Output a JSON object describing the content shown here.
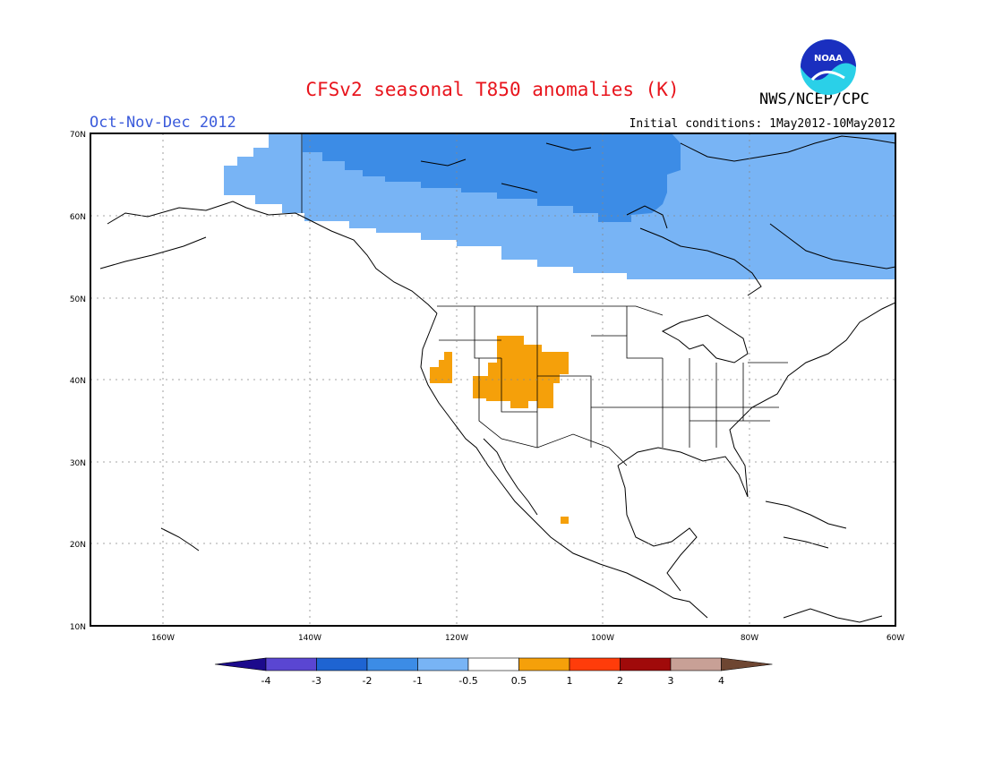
{
  "title": "CFSv2 seasonal T850 anomalies (K)",
  "agency": "NWS/NCEP/CPC",
  "period": "Oct-Nov-Dec 2012",
  "initial_conditions": "Initial conditions: 1May2012-10May2012",
  "logo_text": "NOAA",
  "colors": {
    "title": "#e8141c",
    "period": "#3b5bdb",
    "neg1": "#78b4f5",
    "neg2": "#3c8ce6",
    "pos1": "#f5a00a"
  },
  "lat_labels": [
    "70N",
    "60N",
    "50N",
    "40N",
    "30N",
    "20N",
    "10N"
  ],
  "lon_labels": [
    "160W",
    "140W",
    "120W",
    "100W",
    "80W",
    "60W"
  ],
  "colorbar": {
    "labels": [
      "-4",
      "-3",
      "-2",
      "-1",
      "-0.5",
      "0.5",
      "1",
      "2",
      "3",
      "4"
    ],
    "colors": [
      "#1c0a8c",
      "#5a46d2",
      "#1e64d2",
      "#3c8ce6",
      "#78b4f5",
      "#ffffff",
      "#f5a00a",
      "#ff3c0a",
      "#a00a0a",
      "#c8a096",
      "#6e4632"
    ]
  },
  "map_data": {
    "extent": {
      "lon": [
        -173,
        -60
      ],
      "lat": [
        10,
        70
      ]
    },
    "anomaly_regions": [
      {
        "level": "-1 to -0.5",
        "description": "Canada / Alaska north of ~52N"
      },
      {
        "level": "-2 to -1",
        "description": "Northern Canada around 60-70N, 130W-90W"
      },
      {
        "level": "0.5 to 1",
        "description": "Great Basin / Rockies around 36-45N, 123W-105W"
      },
      {
        "level": "0.5 to 1",
        "description": "Small patch near 23N, 105W"
      }
    ]
  }
}
